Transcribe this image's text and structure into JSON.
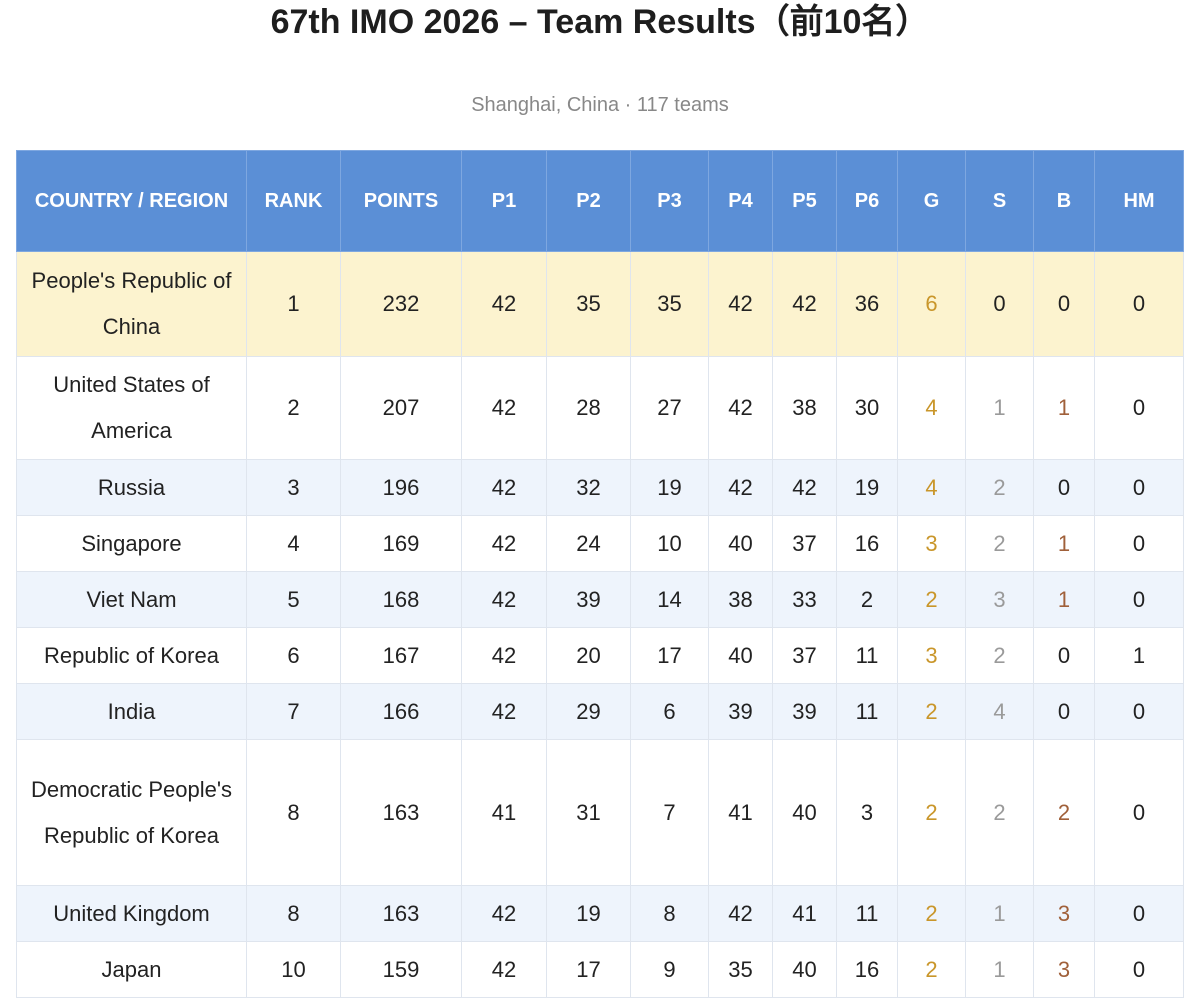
{
  "header": {
    "title": "67th IMO 2026 – Team Results（前10名）",
    "subtitle": "Shanghai, China · 117 teams"
  },
  "table": {
    "headers": [
      "COUNTRY / REGION",
      "RANK",
      "POINTS",
      "P1",
      "P2",
      "P3",
      "P4",
      "P5",
      "P6",
      "G",
      "S",
      "B",
      "HM"
    ],
    "rows": [
      [
        "People's Republic of China",
        1,
        232,
        42,
        35,
        35,
        42,
        42,
        36,
        6,
        0,
        0,
        0
      ],
      [
        "United States of America",
        2,
        207,
        42,
        28,
        27,
        42,
        38,
        30,
        4,
        1,
        1,
        0
      ],
      [
        "Russia",
        3,
        196,
        42,
        32,
        19,
        42,
        42,
        19,
        4,
        2,
        0,
        0
      ],
      [
        "Singapore",
        4,
        169,
        42,
        24,
        10,
        40,
        37,
        16,
        3,
        2,
        1,
        0
      ],
      [
        "Viet Nam",
        5,
        168,
        42,
        39,
        14,
        38,
        33,
        2,
        2,
        3,
        1,
        0
      ],
      [
        "Republic of Korea",
        6,
        167,
        42,
        20,
        17,
        40,
        37,
        11,
        3,
        2,
        0,
        1
      ],
      [
        "India",
        7,
        166,
        42,
        29,
        6,
        39,
        39,
        11,
        2,
        4,
        0,
        0
      ],
      [
        "Democratic People's Republic of Korea",
        8,
        163,
        41,
        31,
        7,
        41,
        40,
        3,
        2,
        2,
        2,
        0
      ],
      [
        "United Kingdom",
        8,
        163,
        42,
        19,
        8,
        42,
        41,
        11,
        2,
        1,
        3,
        0
      ],
      [
        "Japan",
        10,
        159,
        42,
        17,
        9,
        35,
        40,
        16,
        2,
        1,
        3,
        0
      ]
    ]
  }
}
